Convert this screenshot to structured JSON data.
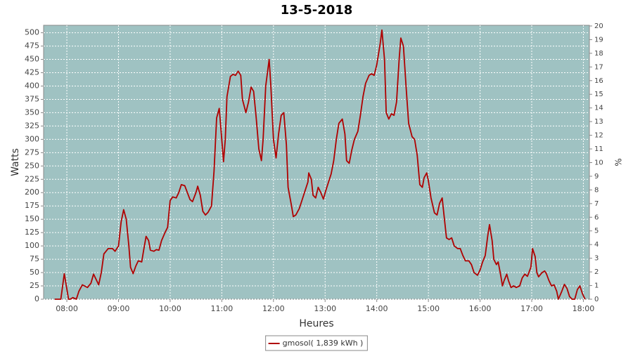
{
  "chart_data": {
    "type": "line",
    "title": "13-5-2018",
    "xlabel": "Heures",
    "ylabel": "Watts",
    "y2label": "%",
    "x": [
      "07:46",
      "07:53",
      "07:57",
      "08:02",
      "08:04",
      "08:07",
      "08:11",
      "08:14",
      "08:18",
      "08:24",
      "08:28",
      "08:31",
      "08:34",
      "08:37",
      "08:40",
      "08:43",
      "08:48",
      "08:53",
      "08:56",
      "09:00",
      "09:03",
      "09:06",
      "09:09",
      "09:12",
      "09:14",
      "09:17",
      "09:20",
      "09:23",
      "09:27",
      "09:29",
      "09:32",
      "09:35",
      "09:37",
      "09:41",
      "09:44",
      "09:47",
      "09:50",
      "09:54",
      "09:57",
      "10:00",
      "10:03",
      "10:07",
      "10:10",
      "10:13",
      "10:17",
      "10:20",
      "10:23",
      "10:26",
      "10:30",
      "10:32",
      "10:35",
      "10:38",
      "10:41",
      "10:44",
      "10:48",
      "10:51",
      "10:54",
      "10:57",
      "10:59",
      "11:02",
      "11:04",
      "11:06",
      "11:10",
      "11:13",
      "11:16",
      "11:19",
      "11:22",
      "11:24",
      "11:28",
      "11:31",
      "11:34",
      "11:37",
      "11:40",
      "11:43",
      "11:46",
      "11:48",
      "11:51",
      "11:55",
      "11:57",
      "12:00",
      "12:03",
      "12:06",
      "12:09",
      "12:12",
      "12:15",
      "12:17",
      "12:21",
      "12:23",
      "12:26",
      "12:30",
      "12:33",
      "12:36",
      "12:40",
      "12:41",
      "12:44",
      "12:46",
      "12:49",
      "12:52",
      "12:55",
      "12:58",
      "13:01",
      "13:04",
      "13:07",
      "13:10",
      "13:13",
      "13:16",
      "13:20",
      "13:23",
      "13:25",
      "13:28",
      "13:31",
      "13:34",
      "13:38",
      "13:41",
      "13:44",
      "13:47",
      "13:51",
      "13:54",
      "13:57",
      "14:00",
      "14:04",
      "14:06",
      "14:09",
      "14:11",
      "14:14",
      "14:17",
      "14:20",
      "14:23",
      "14:26",
      "14:28",
      "14:31",
      "14:34",
      "14:37",
      "14:41",
      "14:44",
      "14:47",
      "14:50",
      "14:53",
      "14:55",
      "14:58",
      "15:00",
      "15:03",
      "15:07",
      "15:10",
      "15:13",
      "15:16",
      "15:18",
      "15:21",
      "15:24",
      "15:27",
      "15:30",
      "15:34",
      "15:37",
      "15:40",
      "15:43",
      "15:47",
      "15:50",
      "15:53",
      "15:57",
      "16:00",
      "16:03",
      "16:06",
      "16:09",
      "16:11",
      "16:14",
      "16:16",
      "16:19",
      "16:21",
      "16:24",
      "16:26",
      "16:28",
      "16:31",
      "16:33",
      "16:36",
      "16:39",
      "16:42",
      "16:46",
      "16:49",
      "16:52",
      "16:55",
      "16:59",
      "17:01",
      "17:04",
      "17:06",
      "17:08",
      "17:12",
      "17:15",
      "17:17",
      "17:20",
      "17:23",
      "17:26",
      "17:29",
      "17:31",
      "17:35",
      "17:38",
      "17:41",
      "17:44",
      "17:47",
      "17:50",
      "17:53",
      "17:56",
      "17:59",
      "18:02"
    ],
    "series": [
      {
        "name": "gmosol( 1,839 kWh )",
        "color": "#b00000",
        "values": [
          0,
          0,
          48,
          0,
          0,
          3,
          0,
          15,
          27,
          22,
          30,
          47,
          37,
          27,
          50,
          85,
          95,
          95,
          90,
          100,
          145,
          168,
          150,
          100,
          60,
          48,
          62,
          72,
          70,
          90,
          118,
          110,
          92,
          90,
          93,
          92,
          110,
          125,
          135,
          185,
          192,
          190,
          200,
          215,
          213,
          200,
          187,
          183,
          200,
          212,
          195,
          165,
          158,
          163,
          175,
          240,
          340,
          358,
          320,
          258,
          300,
          380,
          418,
          422,
          420,
          428,
          420,
          375,
          350,
          370,
          398,
          390,
          340,
          282,
          260,
          300,
          400,
          450,
          400,
          300,
          265,
          310,
          345,
          350,
          290,
          210,
          175,
          155,
          158,
          170,
          185,
          200,
          220,
          237,
          225,
          195,
          190,
          210,
          200,
          188,
          205,
          220,
          235,
          260,
          300,
          330,
          338,
          310,
          260,
          255,
          280,
          300,
          315,
          345,
          380,
          405,
          420,
          423,
          420,
          440,
          480,
          505,
          450,
          350,
          338,
          348,
          345,
          370,
          450,
          490,
          475,
          400,
          330,
          305,
          300,
          270,
          215,
          210,
          228,
          237,
          222,
          190,
          162,
          158,
          180,
          190,
          160,
          115,
          112,
          115,
          100,
          95,
          95,
          82,
          72,
          72,
          65,
          50,
          45,
          55,
          70,
          82,
          120,
          140,
          110,
          75,
          65,
          70,
          45,
          25,
          35,
          47,
          35,
          22,
          25,
          22,
          25,
          40,
          47,
          43,
          60,
          95,
          80,
          50,
          42,
          50,
          53,
          48,
          35,
          25,
          27,
          15,
          0,
          15,
          28,
          20,
          5,
          0,
          0,
          18,
          25,
          10,
          0
        ]
      }
    ],
    "xlim": [
      "07:33",
      "18:07"
    ],
    "xticks": [
      "08:00",
      "09:00",
      "10:00",
      "11:00",
      "12:00",
      "13:00",
      "14:00",
      "15:00",
      "16:00",
      "17:00",
      "18:00"
    ],
    "ylim": [
      0,
      514
    ],
    "yticks": [
      0,
      25,
      50,
      75,
      100,
      125,
      150,
      175,
      200,
      225,
      250,
      275,
      300,
      325,
      350,
      375,
      400,
      425,
      450,
      475,
      500
    ],
    "y2lim": [
      0,
      20.05
    ],
    "y2ticks": [
      0,
      1,
      2,
      3,
      4,
      5,
      6,
      7,
      8,
      9,
      10,
      11,
      12,
      13,
      14,
      15,
      16,
      17,
      18,
      19,
      20
    ],
    "grid": true,
    "legend": "bottom",
    "plot_background": "#9fc2c2"
  }
}
